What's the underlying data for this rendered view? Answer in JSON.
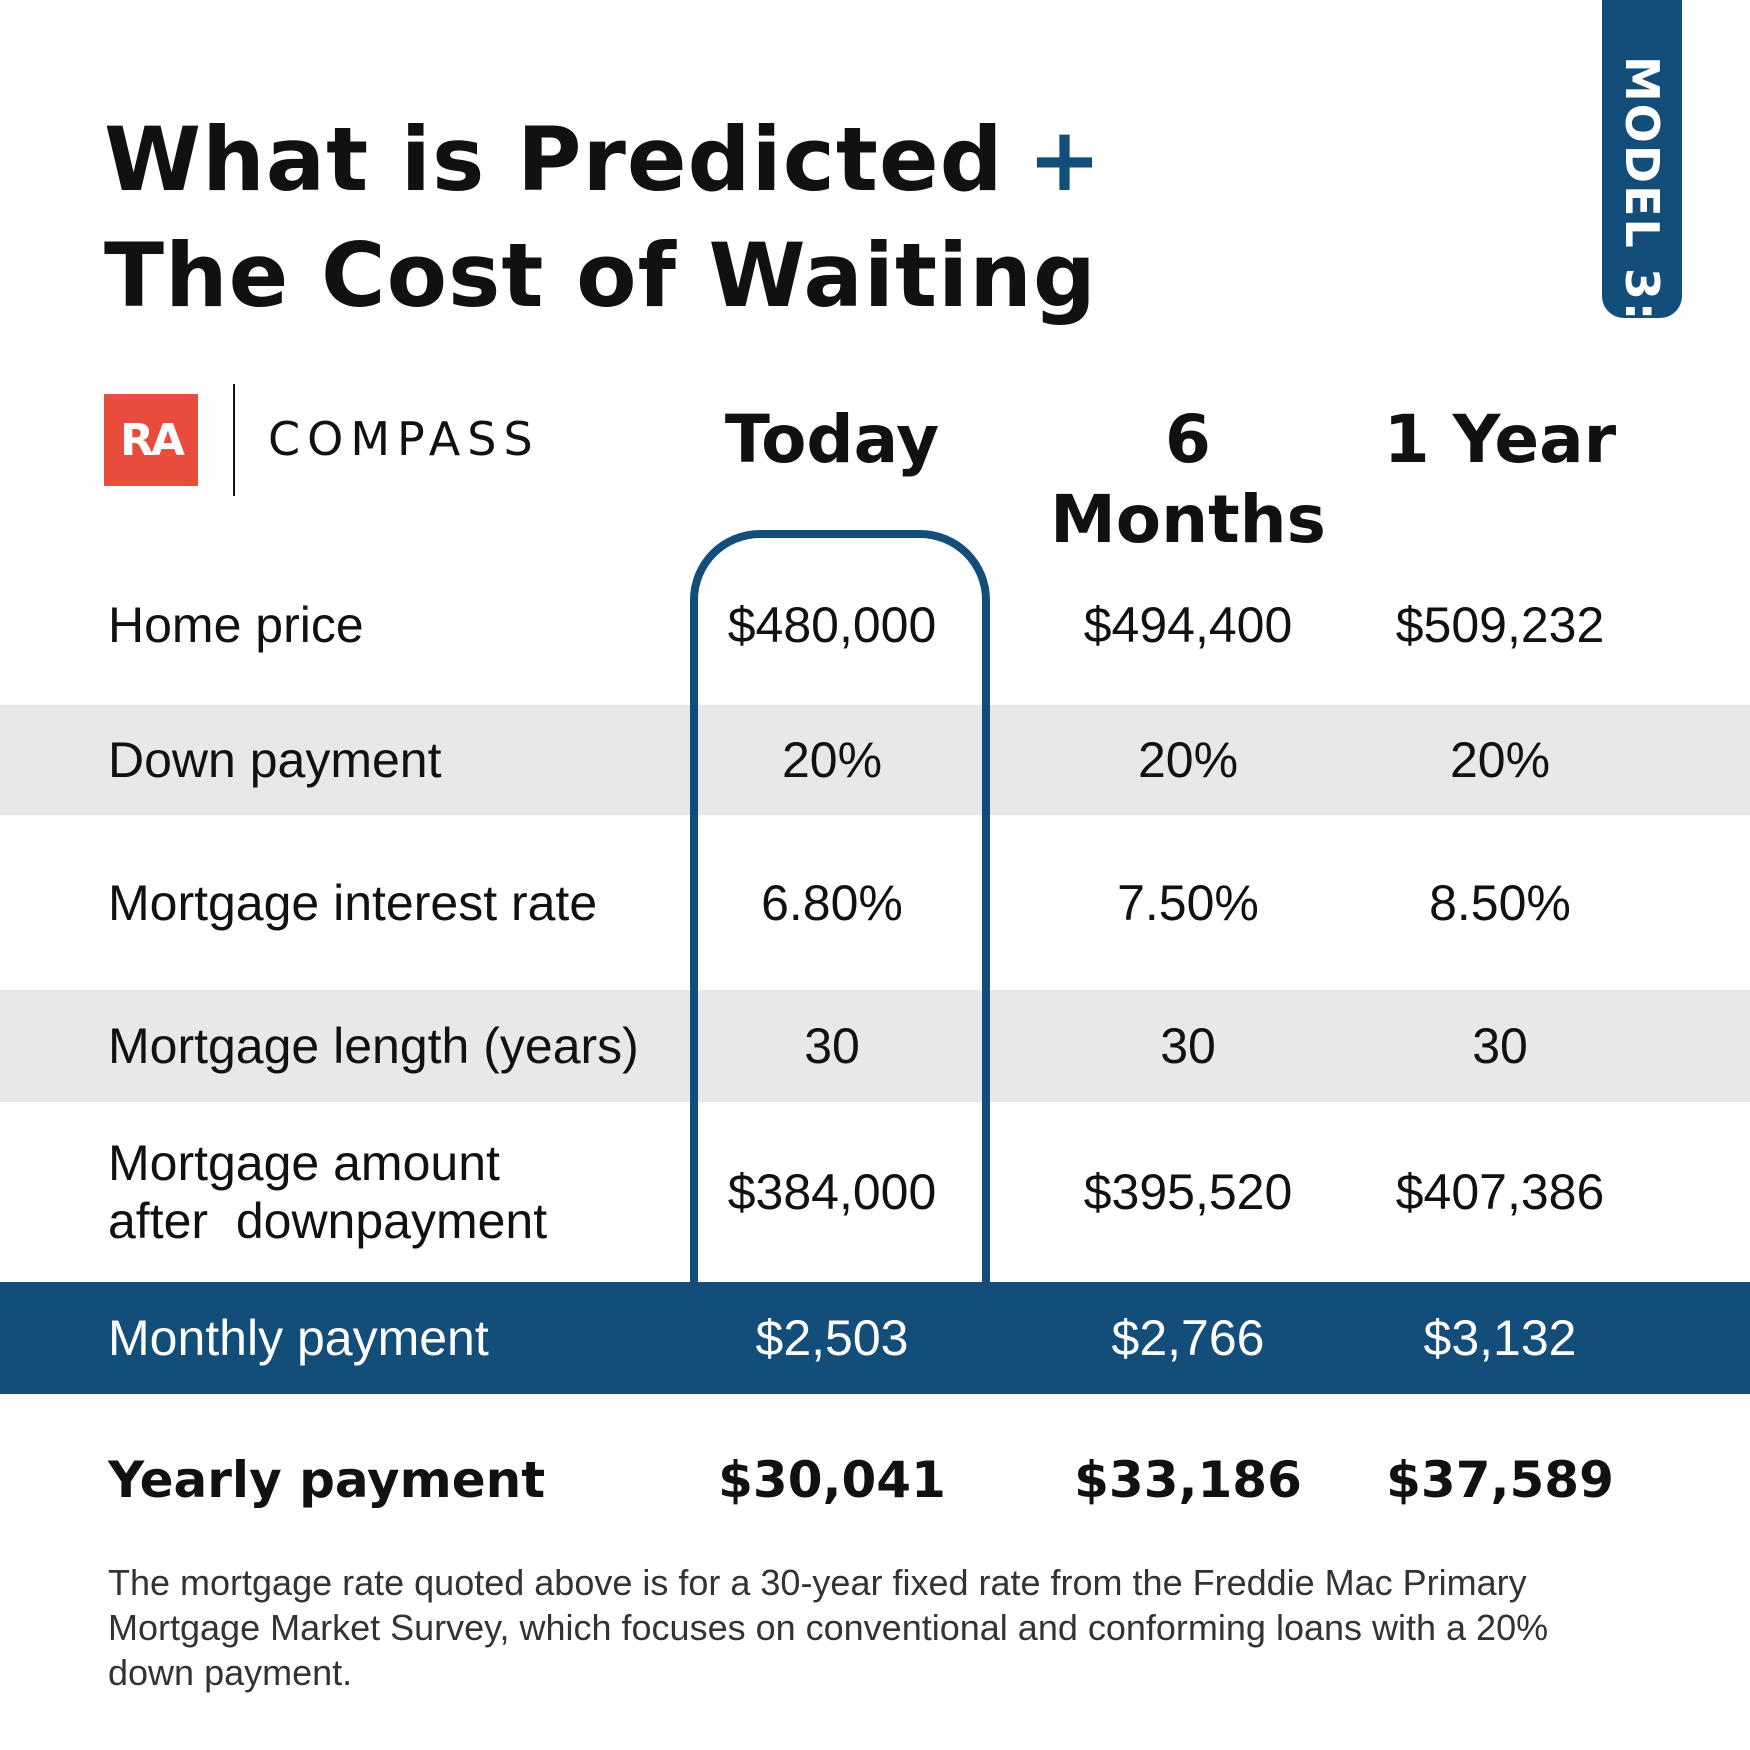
{
  "header": {
    "title_line1": "What is Predicted",
    "title_plus": "+",
    "title_line2": "The Cost of Waiting",
    "tab_label": "MODEL 3:"
  },
  "branding": {
    "ra_logo": "RA",
    "compass_logo": "COMPASS"
  },
  "colors": {
    "accent": "#134e7a",
    "ra_red": "#e74c3c",
    "row_shade": "#e7e8ea"
  },
  "chart_data": {
    "type": "table",
    "columns": [
      "Today",
      "6 Months",
      "1 Year"
    ],
    "highlighted_column": "Today",
    "rows": [
      {
        "label": "Home price",
        "values": [
          "$480,000",
          "$494,400",
          "$509,232"
        ]
      },
      {
        "label": "Down payment",
        "values": [
          "20%",
          "20%",
          "20%"
        ]
      },
      {
        "label": "Mortgage interest rate",
        "values": [
          "6.80%",
          "7.50%",
          "8.50%"
        ]
      },
      {
        "label": "Mortgage length (years)",
        "values": [
          "30",
          "30",
          "30"
        ]
      },
      {
        "label": "Mortgage amount after  downpayment",
        "label_lines": [
          "Mortgage amount",
          "after  downpayment"
        ],
        "values": [
          "$384,000",
          "$395,520",
          "$407,386"
        ]
      },
      {
        "label": "Monthly payment",
        "values": [
          "$2,503",
          "$2,766",
          "$3,132"
        ]
      },
      {
        "label": "Yearly payment",
        "values": [
          "$30,041",
          "$33,186",
          "$37,589"
        ]
      }
    ]
  },
  "footnote": "The mortgage rate quoted above is for a 30-year fixed rate from the Freddie Mac Primary Mortgage Market Survey, which focuses on conventional and conforming loans with a 20% down payment."
}
